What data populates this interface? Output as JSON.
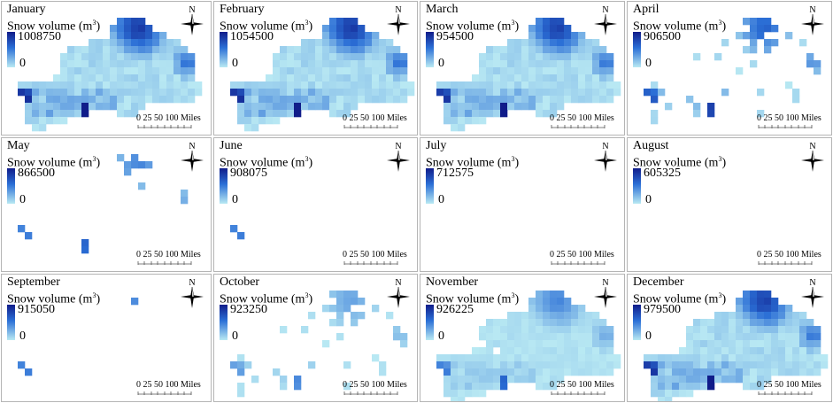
{
  "legend_title": "Snow volume (m³)",
  "legend_title_base": "Snow volume (m",
  "legend_title_sup": "3",
  "legend_title_end": ")",
  "compass_label": "N",
  "scale": {
    "labels": "0  25 50    100 Miles"
  },
  "colors": {
    "max": "#101c8a",
    "mid": "#2b6fd6",
    "min": "#b9e9f3"
  },
  "panels": [
    {
      "month": "January",
      "max": "1008750",
      "min": "0"
    },
    {
      "month": "February",
      "max": "1054500",
      "min": "0"
    },
    {
      "month": "March",
      "max": "954500",
      "min": "0"
    },
    {
      "month": "April",
      "max": "906500",
      "min": "0"
    },
    {
      "month": "May",
      "max": "866500",
      "min": "0"
    },
    {
      "month": "June",
      "max": "908075",
      "min": "0"
    },
    {
      "month": "July",
      "max": "712575",
      "min": "0"
    },
    {
      "month": "August",
      "max": "605325",
      "min": "0"
    },
    {
      "month": "September",
      "max": "915050",
      "min": "0"
    },
    {
      "month": "October",
      "max": "923250",
      "min": "0"
    },
    {
      "month": "November",
      "max": "926225",
      "min": "0"
    },
    {
      "month": "December",
      "max": "979500",
      "min": "0"
    }
  ]
}
